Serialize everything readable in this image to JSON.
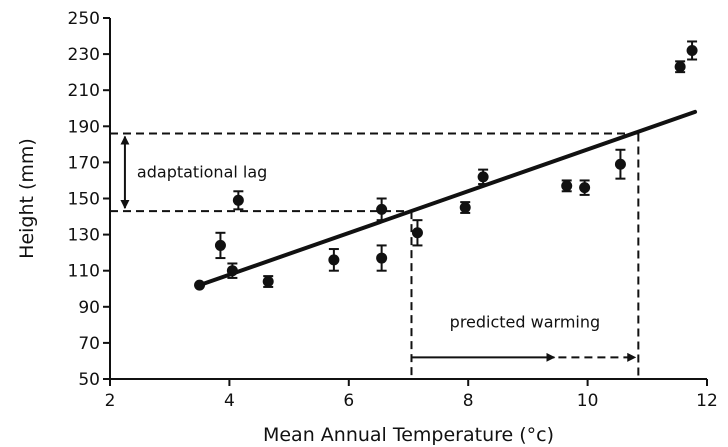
{
  "chart_data": {
    "type": "scatter",
    "xlabel": "Mean Annual Temperature (°c)",
    "ylabel": "Height (mm)",
    "xlim": [
      2,
      12
    ],
    "ylim": [
      50,
      250
    ],
    "x_ticks": [
      2,
      4,
      6,
      8,
      10,
      12
    ],
    "y_ticks": [
      50,
      70,
      90,
      110,
      130,
      150,
      170,
      190,
      210,
      230,
      250
    ],
    "grid": false,
    "series": [
      {
        "points": [
          {
            "x": 3.5,
            "y": 102,
            "err": 0
          },
          {
            "x": 3.85,
            "y": 124,
            "err": 7
          },
          {
            "x": 4.05,
            "y": 110,
            "err": 4
          },
          {
            "x": 4.15,
            "y": 149,
            "err": 5
          },
          {
            "x": 4.65,
            "y": 104,
            "err": 3
          },
          {
            "x": 5.75,
            "y": 116,
            "err": 6
          },
          {
            "x": 6.55,
            "y": 144,
            "err": 6
          },
          {
            "x": 6.55,
            "y": 117,
            "err": 7
          },
          {
            "x": 7.15,
            "y": 131,
            "err": 7
          },
          {
            "x": 7.95,
            "y": 145,
            "err": 3
          },
          {
            "x": 8.25,
            "y": 162,
            "err": 4
          },
          {
            "x": 9.65,
            "y": 157,
            "err": 3
          },
          {
            "x": 9.95,
            "y": 156,
            "err": 4
          },
          {
            "x": 10.55,
            "y": 169,
            "err": 8
          },
          {
            "x": 11.55,
            "y": 223,
            "err": 3
          },
          {
            "x": 11.75,
            "y": 232,
            "err": 5
          }
        ]
      }
    ],
    "trend_line": {
      "x": [
        3.5,
        11.8
      ],
      "y": [
        102,
        198
      ]
    },
    "annotations": [
      {
        "text": "adaptational lag",
        "type": "vertical-double-arrow",
        "x": 2.25,
        "y_from": 143,
        "y_to": 186
      },
      {
        "text": "predicted warming",
        "type": "horizontal-arrow",
        "y": 62,
        "x_from": 7.05,
        "x_to": 10.85
      }
    ],
    "reference_lines": {
      "lower": {
        "y": 143,
        "x_from": 2,
        "x_to": 7.05
      },
      "upper": {
        "y": 186,
        "x_from": 2,
        "x_to": 10.85
      }
    }
  }
}
